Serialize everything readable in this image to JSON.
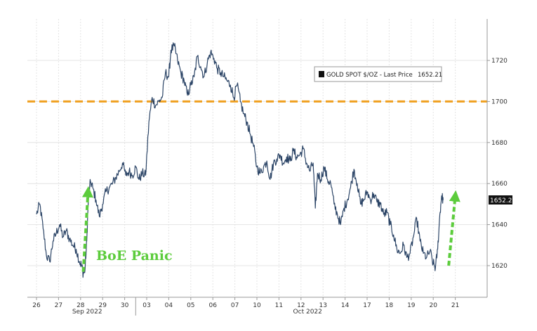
{
  "colors": {
    "series": "#2b4466",
    "reference": "#f0a020",
    "annotation": "#5ccc3c",
    "grid": "#e4e4e4",
    "last_price_bg": "#111111"
  },
  "chart_data": {
    "type": "line",
    "title": "",
    "xlabel": "",
    "ylabel": "",
    "ylim": [
      1605,
      1740
    ],
    "y_ticks": [
      1620,
      1640,
      1660,
      1680,
      1700,
      1720
    ],
    "grid": true,
    "legend_position": "top-right",
    "x_categories": [
      "26",
      "27",
      "28",
      "29",
      "30",
      "03",
      "04",
      "05",
      "06",
      "07",
      "10",
      "11",
      "12",
      "13",
      "14",
      "17",
      "18",
      "19",
      "20",
      "21"
    ],
    "month_labels": [
      "Sep 2022",
      "Oct 2022"
    ],
    "series": [
      {
        "name": "GOLD SPOT $/OZ - Last Price",
        "last_value_label": "1652.21",
        "last_price": 1652.21,
        "points": [
          [
            0.0,
            1645
          ],
          [
            0.15,
            1650
          ],
          [
            0.3,
            1638
          ],
          [
            0.45,
            1625
          ],
          [
            0.6,
            1622
          ],
          [
            0.75,
            1632
          ],
          [
            0.9,
            1636
          ],
          [
            1.05,
            1640
          ],
          [
            1.2,
            1634
          ],
          [
            1.35,
            1637
          ],
          [
            1.5,
            1633
          ],
          [
            1.65,
            1630
          ],
          [
            1.8,
            1628
          ],
          [
            1.95,
            1622
          ],
          [
            2.05,
            1620
          ],
          [
            2.12,
            1616
          ],
          [
            2.2,
            1618
          ],
          [
            2.28,
            1632
          ],
          [
            2.35,
            1652
          ],
          [
            2.45,
            1661
          ],
          [
            2.55,
            1658
          ],
          [
            2.7,
            1652
          ],
          [
            2.85,
            1644
          ],
          [
            3.0,
            1650
          ],
          [
            3.15,
            1656
          ],
          [
            3.3,
            1658
          ],
          [
            3.45,
            1660
          ],
          [
            3.6,
            1663
          ],
          [
            3.75,
            1666
          ],
          [
            3.9,
            1670
          ],
          [
            4.05,
            1664
          ],
          [
            4.2,
            1666
          ],
          [
            4.35,
            1664
          ],
          [
            4.5,
            1668
          ],
          [
            4.65,
            1662
          ],
          [
            4.8,
            1665
          ],
          [
            4.95,
            1664
          ],
          [
            5.1,
            1690
          ],
          [
            5.25,
            1702
          ],
          [
            5.4,
            1698
          ],
          [
            5.55,
            1700
          ],
          [
            5.7,
            1702
          ],
          [
            5.85,
            1714
          ],
          [
            6.0,
            1712
          ],
          [
            6.1,
            1725
          ],
          [
            6.25,
            1727
          ],
          [
            6.4,
            1720
          ],
          [
            6.55,
            1714
          ],
          [
            6.7,
            1710
          ],
          [
            6.85,
            1703
          ],
          [
            7.0,
            1708
          ],
          [
            7.15,
            1712
          ],
          [
            7.3,
            1722
          ],
          [
            7.45,
            1717
          ],
          [
            7.6,
            1712
          ],
          [
            7.75,
            1719
          ],
          [
            7.9,
            1724
          ],
          [
            8.05,
            1721
          ],
          [
            8.2,
            1716
          ],
          [
            8.35,
            1714
          ],
          [
            8.5,
            1712
          ],
          [
            8.65,
            1710
          ],
          [
            8.8,
            1708
          ],
          [
            8.95,
            1702
          ],
          [
            9.1,
            1708
          ],
          [
            9.25,
            1700
          ],
          [
            9.4,
            1694
          ],
          [
            9.55,
            1690
          ],
          [
            9.7,
            1684
          ],
          [
            9.85,
            1678
          ],
          [
            10.0,
            1668
          ],
          [
            10.15,
            1665
          ],
          [
            10.3,
            1668
          ],
          [
            10.45,
            1671
          ],
          [
            10.6,
            1662
          ],
          [
            10.75,
            1670
          ],
          [
            10.9,
            1672
          ],
          [
            11.05,
            1674
          ],
          [
            11.2,
            1670
          ],
          [
            11.35,
            1673
          ],
          [
            11.5,
            1671
          ],
          [
            11.65,
            1676
          ],
          [
            11.8,
            1673
          ],
          [
            11.95,
            1674
          ],
          [
            12.1,
            1677
          ],
          [
            12.25,
            1670
          ],
          [
            12.4,
            1666
          ],
          [
            12.55,
            1670
          ],
          [
            12.65,
            1648
          ],
          [
            12.75,
            1665
          ],
          [
            12.9,
            1662
          ],
          [
            13.05,
            1668
          ],
          [
            13.2,
            1662
          ],
          [
            13.35,
            1660
          ],
          [
            13.5,
            1650
          ],
          [
            13.65,
            1645
          ],
          [
            13.8,
            1640
          ],
          [
            13.95,
            1648
          ],
          [
            14.1,
            1652
          ],
          [
            14.25,
            1658
          ],
          [
            14.4,
            1667
          ],
          [
            14.55,
            1660
          ],
          [
            14.7,
            1650
          ],
          [
            14.85,
            1652
          ],
          [
            15.0,
            1656
          ],
          [
            15.15,
            1652
          ],
          [
            15.3,
            1655
          ],
          [
            15.45,
            1651
          ],
          [
            15.6,
            1650
          ],
          [
            15.75,
            1645
          ],
          [
            15.9,
            1646
          ],
          [
            16.05,
            1640
          ],
          [
            16.2,
            1635
          ],
          [
            16.35,
            1628
          ],
          [
            16.5,
            1626
          ],
          [
            16.65,
            1630
          ],
          [
            16.8,
            1624
          ],
          [
            16.95,
            1626
          ],
          [
            17.1,
            1634
          ],
          [
            17.25,
            1643
          ],
          [
            17.4,
            1632
          ],
          [
            17.55,
            1626
          ],
          [
            17.7,
            1624
          ],
          [
            17.85,
            1627
          ],
          [
            18.0,
            1621
          ],
          [
            18.1,
            1619
          ],
          [
            18.2,
            1628
          ],
          [
            18.3,
            1645
          ],
          [
            18.38,
            1654
          ],
          [
            18.45,
            1652
          ]
        ]
      }
    ],
    "reference_lines": [
      {
        "y": 1700,
        "style": "dashed"
      }
    ],
    "annotations": [
      {
        "text": "BoE Panic"
      }
    ],
    "arrows": [
      {
        "x_from": 2.12,
        "y_from": 1617,
        "x_to": 2.34,
        "y_to": 1656
      },
      {
        "x_from": 18.7,
        "y_from": 1620,
        "x_to": 19.0,
        "y_to": 1654
      }
    ]
  }
}
